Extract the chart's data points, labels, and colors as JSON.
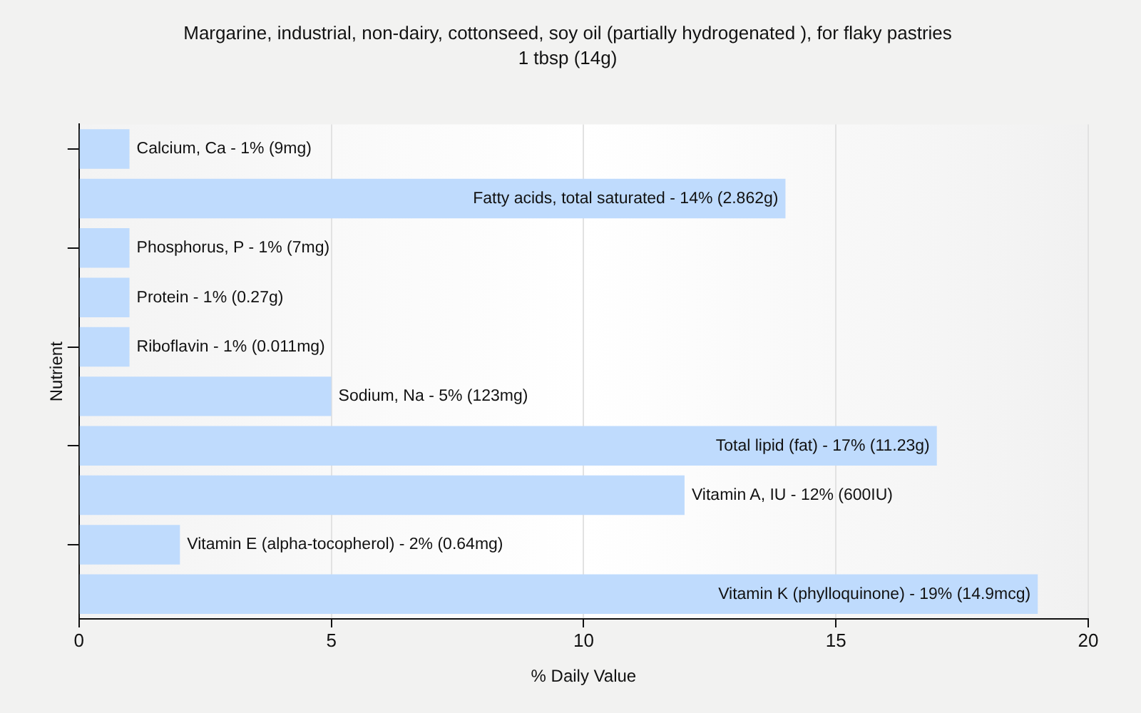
{
  "chart_data": {
    "type": "bar",
    "orientation": "horizontal",
    "title": "Margarine, industrial, non-dairy, cottonseed, soy oil (partially hydrogenated ), for flaky pastries",
    "subtitle": "1 tbsp (14g)",
    "xlabel": "% Daily Value",
    "ylabel": "Nutrient",
    "categories": [
      "Calcium, Ca - 1% (9mg)",
      "Fatty acids, total saturated - 14% (2.862g)",
      "Phosphorus, P - 1% (7mg)",
      "Protein - 1% (0.27g)",
      "Riboflavin - 1% (0.011mg)",
      "Sodium, Na - 5% (123mg)",
      "Total lipid (fat) - 17% (11.23g)",
      "Vitamin A, IU - 12% (600IU)",
      "Vitamin E (alpha-tocopherol) - 2% (0.64mg)",
      "Vitamin K (phylloquinone) - 19% (14.9mcg)"
    ],
    "values": [
      1,
      14,
      1,
      1,
      1,
      5,
      17,
      12,
      2,
      19
    ],
    "color": "#bfdbfd",
    "xlim": [
      0,
      20
    ],
    "xticks": [
      0,
      5,
      10,
      15,
      20
    ],
    "grid": "x"
  }
}
